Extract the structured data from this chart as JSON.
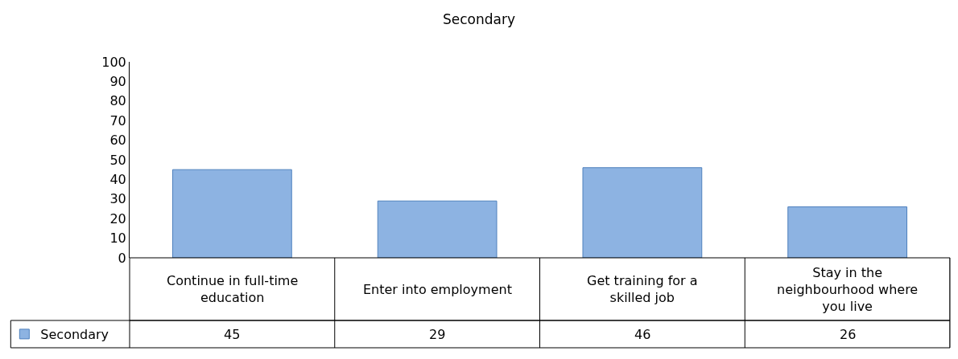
{
  "chart_data": {
    "type": "bar",
    "title": "Secondary",
    "categories": [
      "Continue in full-time education",
      "Enter into employment",
      "Get training for a skilled job",
      "Stay in the neighbourhood where you live"
    ],
    "series": [
      {
        "name": "Secondary",
        "color": "#8db3e2",
        "values": [
          45,
          29,
          46,
          26
        ]
      }
    ],
    "ylim": [
      0,
      100
    ],
    "yticks": [
      0,
      10,
      20,
      30,
      40,
      50,
      60,
      70,
      80,
      90,
      100
    ],
    "data_labels": true,
    "legend": "bottom left"
  }
}
